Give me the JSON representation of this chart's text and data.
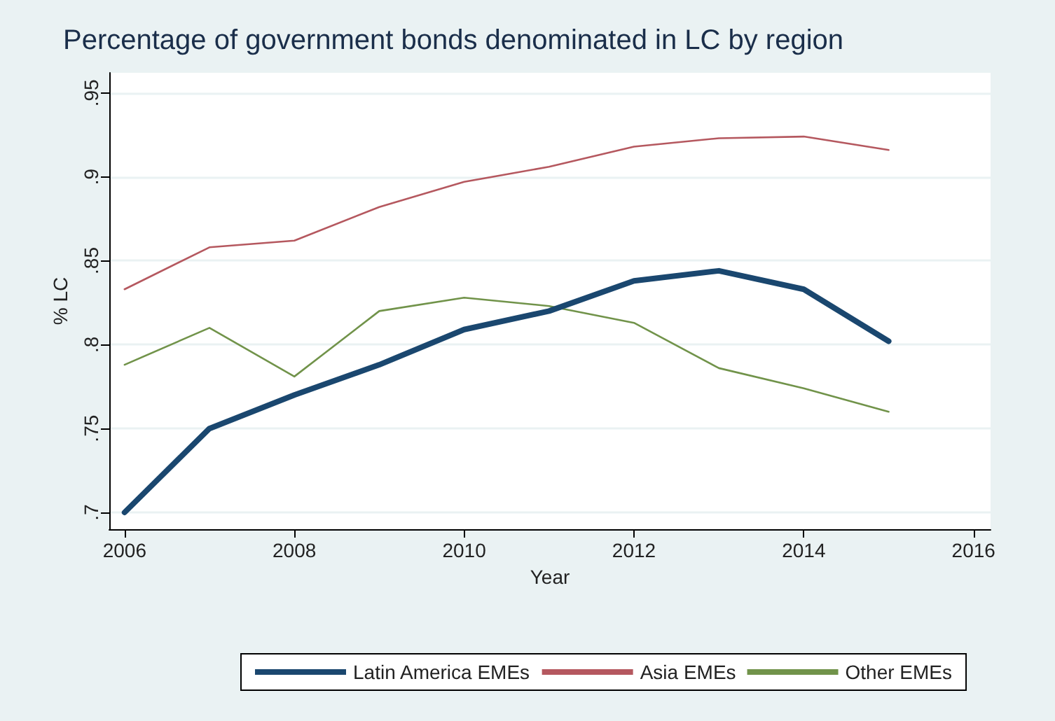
{
  "chart_data": {
    "type": "line",
    "title": "Percentage of government bonds denominated in LC by region",
    "xlabel": "Year",
    "ylabel": "% LC",
    "x": [
      2006,
      2007,
      2008,
      2009,
      2010,
      2011,
      2012,
      2013,
      2014,
      2015
    ],
    "series": [
      {
        "name": "Latin America EMEs",
        "color": "#1a476f",
        "values": [
          0.7,
          0.75,
          0.77,
          0.788,
          0.809,
          0.82,
          0.838,
          0.844,
          0.833,
          0.802
        ]
      },
      {
        "name": "Asia EMEs",
        "color": "#b5585f",
        "values": [
          0.833,
          0.858,
          0.862,
          0.882,
          0.897,
          0.906,
          0.918,
          0.923,
          0.924,
          0.916
        ]
      },
      {
        "name": "Other EMEs",
        "color": "#71934a",
        "values": [
          0.788,
          0.81,
          0.781,
          0.82,
          0.828,
          0.823,
          0.813,
          0.786,
          0.774,
          0.76
        ]
      }
    ],
    "xlim": [
      2005.82,
      2016.2
    ],
    "xticks": [
      2006,
      2008,
      2010,
      2012,
      2014,
      2016
    ],
    "ylim": [
      0.69,
      0.962
    ],
    "yticks": [
      {
        "value": 0.7,
        "label": ".7"
      },
      {
        "value": 0.75,
        "label": ".75"
      },
      {
        "value": 0.8,
        "label": ".8"
      },
      {
        "value": 0.85,
        "label": ".85"
      },
      {
        "value": 0.9,
        "label": ".9"
      },
      {
        "value": 0.95,
        "label": ".95"
      }
    ],
    "grid": "y",
    "legend": "bottom",
    "marker": "none",
    "line_style": "solid"
  }
}
